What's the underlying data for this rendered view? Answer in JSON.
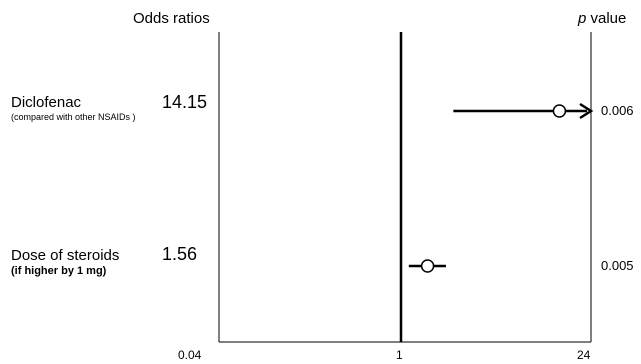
{
  "chart_data": {
    "type": "forest",
    "headers": {
      "odds_ratios": "Odds ratios",
      "p_value_italic": "p",
      "p_value_rest": " value"
    },
    "x_scale": "log",
    "xlim": [
      0.04,
      24
    ],
    "x_ticks": [
      "0.04",
      "1",
      "24"
    ],
    "reference_line": 1,
    "rows": [
      {
        "label": "Diclofenac",
        "sublabel": "(compared with other NSAIDs )",
        "odds_ratio": "14.15",
        "or": 14.15,
        "ci_low": 2.4,
        "ci_high": 24,
        "ci_arrow": true,
        "p_value": "0.006"
      },
      {
        "label": "Dose of steroids",
        "sublabel": "(if higher by 1 mg)",
        "odds_ratio": "1.56",
        "or": 1.56,
        "ci_low": 1.14,
        "ci_high": 2.12,
        "ci_arrow": false,
        "p_value": "0.005"
      }
    ]
  }
}
